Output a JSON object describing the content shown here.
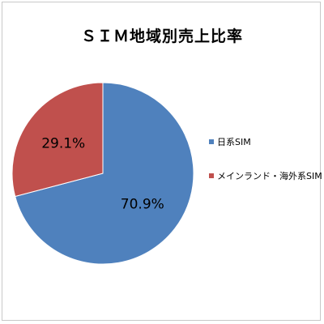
{
  "chart_data": {
    "type": "pie",
    "title": "ＳＩＭ地域別売上比率",
    "slices": [
      {
        "name": "日系SIM",
        "value": 70.9,
        "label": "70.9%",
        "color": "#4F81BD"
      },
      {
        "name": "メインランド・海外系SIM",
        "value": 29.1,
        "label": "29.1%",
        "color": "#C0504D"
      }
    ],
    "legend_position": "right"
  }
}
